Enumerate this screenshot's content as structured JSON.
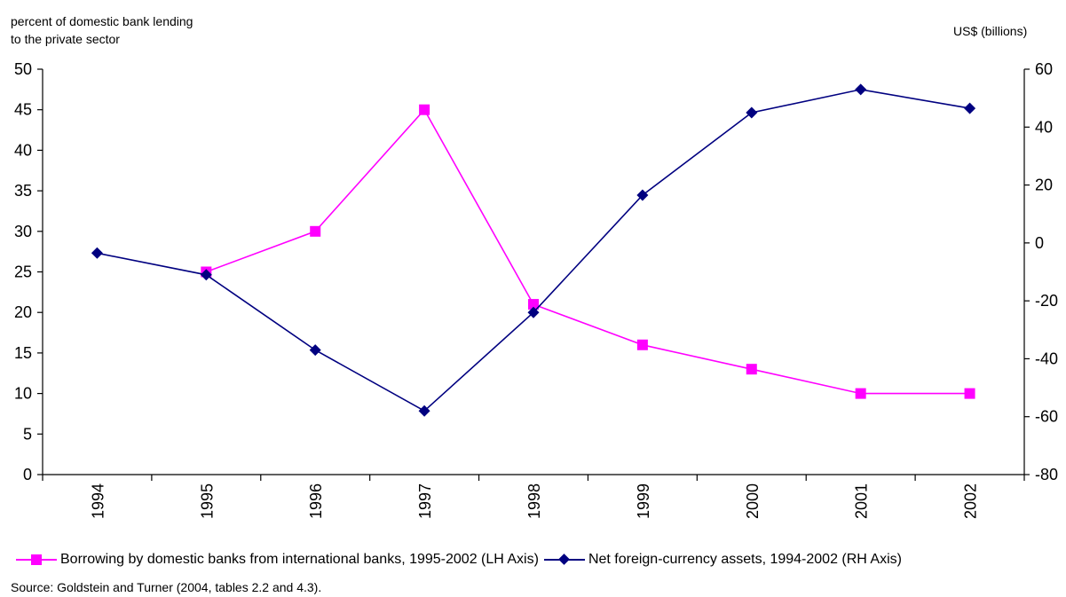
{
  "chart_data": {
    "type": "line",
    "categories": [
      "1994",
      "1995",
      "1996",
      "1997",
      "1998",
      "1999",
      "2000",
      "2001",
      "2002"
    ],
    "left_axis": {
      "label_line1": "percent of domestic bank lending",
      "label_line2": "to the private sector",
      "ylim": [
        0,
        50
      ],
      "ticks": [
        "0",
        "5",
        "10",
        "15",
        "20",
        "25",
        "30",
        "35",
        "40",
        "45",
        "50"
      ]
    },
    "right_axis": {
      "label": "US$ (billions)",
      "ylim": [
        -80,
        60
      ],
      "ticks": [
        "-80",
        "-60",
        "-40",
        "-20",
        "0",
        "20",
        "40",
        "60"
      ]
    },
    "series": [
      {
        "name": "Borrowing by domestic banks from international banks, 1995-2002 (LH Axis)",
        "axis": "left",
        "color": "#ff00ff",
        "marker": "square",
        "values": [
          null,
          25,
          30,
          45,
          21,
          16,
          13,
          10,
          10
        ]
      },
      {
        "name": "Net foreign-currency assets, 1994-2002 (RH Axis)",
        "axis": "right",
        "color": "#000080",
        "marker": "diamond",
        "values": [
          -3.5,
          -11,
          -37,
          -58,
          -24,
          16.5,
          45,
          53,
          46.5
        ]
      }
    ],
    "grid": false,
    "legend_position": "bottom",
    "source": "Source: Goldstein and Turner (2004, tables 2.2 and 4.3)."
  }
}
